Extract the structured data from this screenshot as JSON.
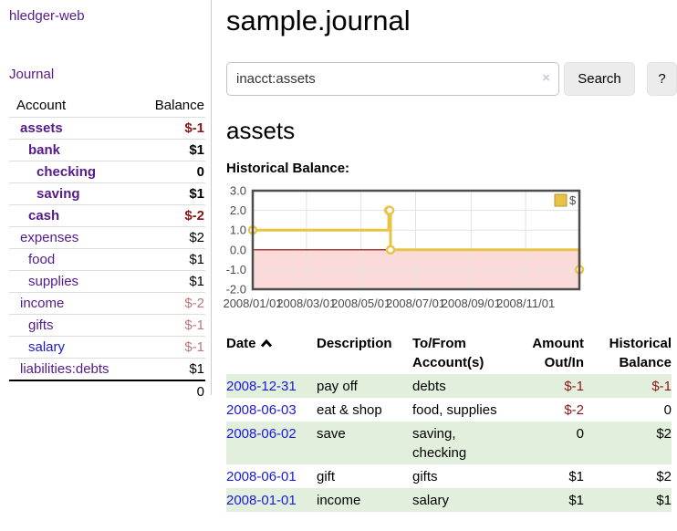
{
  "sidebar": {
    "app_title": "hledger-web",
    "journal_link": "Journal",
    "accounts": {
      "col_account": "Account",
      "col_balance": "Balance",
      "rows": [
        {
          "account": "assets",
          "balance": "$-1",
          "depth": 1,
          "bold": true
        },
        {
          "account": "bank",
          "balance": "$1",
          "depth": 2,
          "bold": true
        },
        {
          "account": "checking",
          "balance": "0",
          "depth": 3,
          "bold": true
        },
        {
          "account": "saving",
          "balance": "$1",
          "depth": 3,
          "bold": true
        },
        {
          "account": "cash",
          "balance": "$-2",
          "depth": 2,
          "bold": true
        },
        {
          "account": "expenses",
          "balance": "$2",
          "depth": 1,
          "bold": false
        },
        {
          "account": "food",
          "balance": "$1",
          "depth": 2,
          "bold": false
        },
        {
          "account": "supplies",
          "balance": "$1",
          "depth": 2,
          "bold": false
        },
        {
          "account": "income",
          "balance": "$-2",
          "depth": 1,
          "bold": false
        },
        {
          "account": "gifts",
          "balance": "$-1",
          "depth": 2,
          "bold": false
        },
        {
          "account": "salary",
          "balance": "$-1",
          "depth": 2,
          "bold": false,
          "unvisited": true
        },
        {
          "account": "liabilities:debts",
          "balance": "$1",
          "depth": 1,
          "bold": false
        }
      ],
      "total": "0"
    }
  },
  "main": {
    "page_title": "sample.journal",
    "search": {
      "value": "inacct:assets",
      "clear_icon": "×",
      "search_button": "Search",
      "help_button": "?"
    },
    "account_heading": "assets",
    "section_label": "Historical Balance:"
  },
  "register": {
    "headers": [
      "Date",
      "Description",
      "To/From Account(s)",
      "Amount Out/In",
      "Historical Balance"
    ],
    "sort": {
      "column": "Date",
      "direction": "up"
    },
    "rows": [
      {
        "date": "2008-12-31",
        "description": "pay off",
        "accounts": "debts",
        "amount": "$-1",
        "balance": "$-1"
      },
      {
        "date": "2008-06-03",
        "description": "eat & shop",
        "accounts": "food, supplies",
        "amount": "$-2",
        "balance": "0"
      },
      {
        "date": "2008-06-02",
        "description": "save",
        "accounts": "saving, checking",
        "amount": "0",
        "balance": "$2"
      },
      {
        "date": "2008-06-01",
        "description": "gift",
        "accounts": "gifts",
        "amount": "$1",
        "balance": "$2"
      },
      {
        "date": "2008-01-01",
        "description": "income",
        "accounts": "salary",
        "amount": "$1",
        "balance": "$1"
      }
    ]
  },
  "chart_data": {
    "type": "line",
    "style": "steps",
    "title": "Historical Balance",
    "legend": {
      "label": "$",
      "position": "top-right"
    },
    "series": [
      {
        "name": "$",
        "color": "#e9c345",
        "points": [
          [
            "2008-01-01",
            1
          ],
          [
            "2008-06-01",
            2
          ],
          [
            "2008-06-02",
            2
          ],
          [
            "2008-06-03",
            0
          ],
          [
            "2008-12-31",
            -1
          ]
        ]
      }
    ],
    "xlim": [
      "2008-01-01",
      "2008-12-31"
    ],
    "ylim": [
      -2,
      3
    ],
    "y_ticks": [
      3,
      2,
      1,
      0,
      -1,
      -2
    ],
    "x_ticks": [
      {
        "date": "2008-01-01",
        "label": "2008/01/01"
      },
      {
        "date": "2008-03-01",
        "label": "2008/03/01"
      },
      {
        "date": "2008-05-01",
        "label": "2008/05/01"
      },
      {
        "date": "2008-07-01",
        "label": "2008/07/01"
      },
      {
        "date": "2008-09-01",
        "label": "2008/09/01"
      },
      {
        "date": "2008-11-01",
        "label": "2008/11/01"
      }
    ],
    "grid": true,
    "negative_region_color": "#fbdada",
    "zero_line_color": "#8b0000",
    "plot_border_color": "#4d4d4d",
    "grid_line_color": "#e3e3e3",
    "axis_label_color": "#4a4a4a"
  },
  "colors": {
    "link_visited": "#551a8b",
    "link_unvisited": "#1a1ad6",
    "negative_bold": "#8b1414",
    "negative_muted": "#bb7878",
    "negative_register": "#8d1717",
    "row_green": "#e2efdc",
    "series_yellow": "#e9c345"
  }
}
